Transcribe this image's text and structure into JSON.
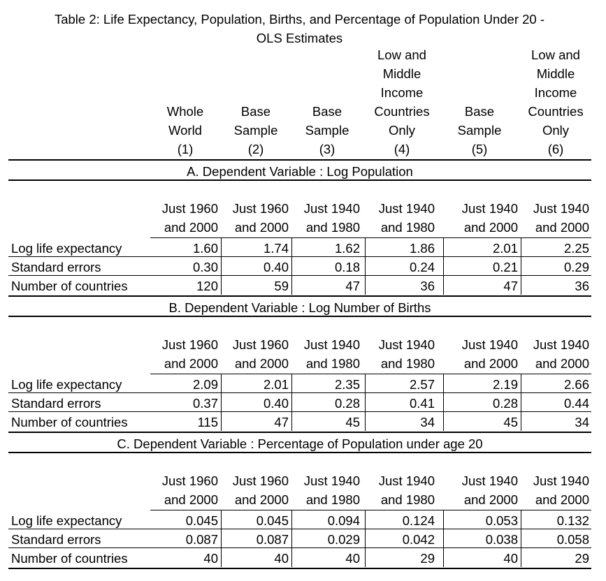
{
  "title": {
    "line1": "Table 2: Life Expectancy, Population, Births, and Percentage of Population Under 20 -",
    "line2": "OLS Estimates"
  },
  "columns": [
    {
      "lines": [
        "Whole",
        "World"
      ],
      "num": "(1)"
    },
    {
      "lines": [
        "Base",
        "Sample"
      ],
      "num": "(2)"
    },
    {
      "lines": [
        "Base",
        "Sample"
      ],
      "num": "(3)"
    },
    {
      "lines": [
        "Low and",
        "Middle",
        "Income",
        "Countries",
        "Only"
      ],
      "num": "(4)"
    },
    {
      "lines": [
        "Base",
        "Sample"
      ],
      "num": "(5)"
    },
    {
      "lines": [
        "Low and",
        "Middle",
        "Income",
        "Countries",
        "Only"
      ],
      "num": "(6)"
    }
  ],
  "periods": [
    [
      "Just 1960",
      "and 2000"
    ],
    [
      "Just 1960",
      "and 2000"
    ],
    [
      "Just 1940",
      "and 1980"
    ],
    [
      "Just 1940",
      "and 1980"
    ],
    [
      "Just 1940",
      "and 2000"
    ],
    [
      "Just 1940",
      "and 2000"
    ]
  ],
  "row_labels": [
    "Log life expectancy",
    "Standard errors",
    "Number of countries"
  ],
  "panels": [
    {
      "title": "A. Dependent Variable : Log Population",
      "rows": [
        [
          "1.60",
          "1.74",
          "1.62",
          "1.86",
          "2.01",
          "2.25"
        ],
        [
          "0.30",
          "0.40",
          "0.18",
          "0.24",
          "0.21",
          "0.29"
        ],
        [
          "120",
          "59",
          "47",
          "36",
          "47",
          "36"
        ]
      ]
    },
    {
      "title": "B. Dependent Variable : Log Number of Births",
      "rows": [
        [
          "2.09",
          "2.01",
          "2.35",
          "2.57",
          "2.19",
          "2.66"
        ],
        [
          "0.37",
          "0.40",
          "0.28",
          "0.41",
          "0.28",
          "0.44"
        ],
        [
          "115",
          "47",
          "45",
          "34",
          "45",
          "34"
        ]
      ]
    },
    {
      "title": "C. Dependent Variable : Percentage of Population under age 20",
      "rows": [
        [
          "0.045",
          "0.045",
          "0.094",
          "0.124",
          "0.053",
          "0.132"
        ],
        [
          "0.087",
          "0.087",
          "0.029",
          "0.042",
          "0.038",
          "0.058"
        ],
        [
          "40",
          "40",
          "40",
          "29",
          "40",
          "29"
        ]
      ]
    }
  ]
}
